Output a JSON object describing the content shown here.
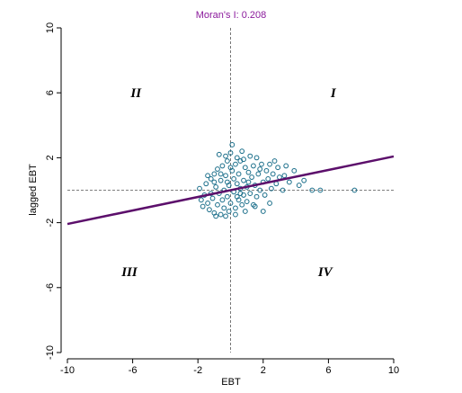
{
  "colors": {
    "title": "#8b1a9c",
    "regression_line": "#5c0f6b",
    "points": "#1a6e8a",
    "axis": "#000000",
    "reference_lines": "#555555"
  },
  "chart_data": {
    "type": "scatter",
    "title": "Moran's I: 0.208",
    "xlabel": "EBT",
    "ylabel": "lagged EBT",
    "xlim": [
      -10,
      10
    ],
    "ylim": [
      -10,
      10
    ],
    "x_ticks": [
      "-10",
      "-6",
      "-2",
      "2",
      "6",
      "10"
    ],
    "y_ticks": [
      "-10",
      "-6",
      "-2",
      "2",
      "6",
      "10"
    ],
    "x_tick_values": [
      -10,
      -6,
      -2,
      2,
      6,
      10
    ],
    "y_tick_values": [
      -10,
      -6,
      -2,
      2,
      6,
      10
    ],
    "reference_lines": {
      "x": 0,
      "y": 0,
      "style": "dashed"
    },
    "regression_line": {
      "slope": 0.208,
      "intercept": 0,
      "x_range": [
        -10,
        10
      ]
    },
    "quadrant_labels": [
      {
        "label": "I",
        "x": 6.3,
        "y": 6
      },
      {
        "label": "II",
        "x": -5.8,
        "y": 6
      },
      {
        "label": "III",
        "x": -6.2,
        "y": -5
      },
      {
        "label": "IV",
        "x": 5.8,
        "y": -5
      }
    ],
    "points": [
      [
        -1.9,
        0.1
      ],
      [
        -1.6,
        -0.3
      ],
      [
        -1.7,
        -1.0
      ],
      [
        -1.5,
        0.4
      ],
      [
        -1.4,
        -0.8
      ],
      [
        -1.3,
        -1.2
      ],
      [
        -1.2,
        0.7
      ],
      [
        -1.1,
        -0.5
      ],
      [
        -1.0,
        1.0
      ],
      [
        -1.0,
        -1.4
      ],
      [
        -0.9,
        0.2
      ],
      [
        -0.8,
        -0.9
      ],
      [
        -0.8,
        1.3
      ],
      [
        -0.7,
        -0.2
      ],
      [
        -0.7,
        2.2
      ],
      [
        -0.6,
        0.6
      ],
      [
        -0.6,
        -1.5
      ],
      [
        -0.5,
        -0.6
      ],
      [
        -0.5,
        1.5
      ],
      [
        -0.4,
        0.0
      ],
      [
        -0.4,
        -1.1
      ],
      [
        -0.3,
        2.1
      ],
      [
        -0.3,
        0.9
      ],
      [
        -0.2,
        -0.4
      ],
      [
        -0.2,
        1.8
      ],
      [
        -0.1,
        0.3
      ],
      [
        -0.1,
        -1.3
      ],
      [
        0.0,
        2.3
      ],
      [
        0.0,
        -0.8
      ],
      [
        0.1,
        1.2
      ],
      [
        0.1,
        2.8
      ],
      [
        0.2,
        -0.1
      ],
      [
        0.2,
        0.7
      ],
      [
        0.3,
        1.6
      ],
      [
        0.3,
        -1.1
      ],
      [
        0.4,
        0.4
      ],
      [
        0.4,
        2.0
      ],
      [
        0.5,
        -0.6
      ],
      [
        0.5,
        1.0
      ],
      [
        0.6,
        0.1
      ],
      [
        0.6,
        1.8
      ],
      [
        0.7,
        -0.9
      ],
      [
        0.7,
        2.4
      ],
      [
        0.8,
        0.6
      ],
      [
        0.8,
        -0.3
      ],
      [
        0.9,
        1.4
      ],
      [
        1.0,
        0.2
      ],
      [
        1.0,
        -0.7
      ],
      [
        1.1,
        1.1
      ],
      [
        1.2,
        2.1
      ],
      [
        1.2,
        -0.2
      ],
      [
        1.3,
        0.8
      ],
      [
        1.4,
        -0.9
      ],
      [
        1.4,
        1.5
      ],
      [
        1.5,
        0.3
      ],
      [
        1.6,
        2.0
      ],
      [
        1.6,
        -0.4
      ],
      [
        1.7,
        1.0
      ],
      [
        1.8,
        0.0
      ],
      [
        1.9,
        1.6
      ],
      [
        2.0,
        0.5
      ],
      [
        2.1,
        -0.3
      ],
      [
        2.2,
        1.2
      ],
      [
        2.3,
        0.7
      ],
      [
        2.4,
        1.6
      ],
      [
        2.5,
        0.1
      ],
      [
        2.6,
        1.0
      ],
      [
        2.8,
        0.4
      ],
      [
        2.9,
        1.4
      ],
      [
        3.0,
        0.8
      ],
      [
        3.2,
        0.0
      ],
      [
        3.4,
        1.5
      ],
      [
        3.6,
        0.5
      ],
      [
        3.9,
        1.2
      ],
      [
        4.2,
        0.3
      ],
      [
        4.5,
        0.6
      ],
      [
        5.0,
        0.0
      ],
      [
        5.5,
        0.0
      ],
      [
        7.6,
        0.0
      ],
      [
        -1.8,
        -0.6
      ],
      [
        -1.2,
        -0.2
      ],
      [
        -0.9,
        -1.6
      ],
      [
        -0.3,
        -1.6
      ],
      [
        0.3,
        -1.5
      ],
      [
        0.9,
        -1.3
      ],
      [
        1.5,
        -1.0
      ],
      [
        2.0,
        -1.3
      ],
      [
        -0.6,
        1.0
      ],
      [
        0.0,
        1.4
      ],
      [
        0.6,
        -0.2
      ],
      [
        1.1,
        0.5
      ],
      [
        -1.4,
        0.9
      ],
      [
        -0.2,
        0.5
      ],
      [
        0.8,
        1.9
      ],
      [
        1.8,
        1.3
      ],
      [
        2.4,
        -0.8
      ],
      [
        2.7,
        1.8
      ],
      [
        3.3,
        0.9
      ],
      [
        -1.0,
        0.5
      ],
      [
        0.4,
        -0.4
      ]
    ]
  }
}
